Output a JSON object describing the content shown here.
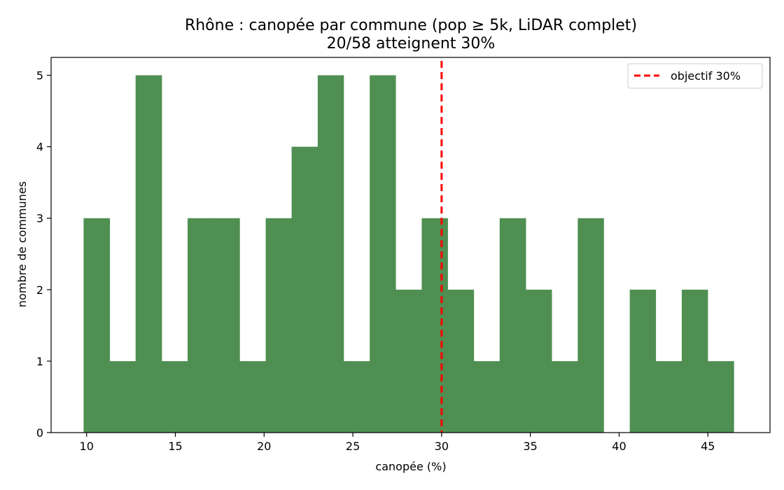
{
  "chart_data": {
    "type": "bar",
    "title": "Rhône : canopée par commune (pop ≥ 5k, LiDAR complet)",
    "subtitle": "20/58 atteignent 30%",
    "xlabel": "canopée (%)",
    "ylabel": "nombre de communes",
    "xlim": [
      8.0,
      48.5
    ],
    "ylim": [
      0,
      5.25
    ],
    "xticks": [
      10,
      15,
      20,
      25,
      30,
      35,
      40,
      45
    ],
    "yticks": [
      0,
      1,
      2,
      3,
      4,
      5
    ],
    "bin_edges": [
      9.83,
      11.3,
      12.76,
      14.23,
      15.69,
      17.16,
      18.62,
      20.09,
      21.55,
      23.02,
      24.48,
      25.95,
      27.41,
      28.88,
      30.34,
      31.81,
      33.27,
      34.74,
      36.2,
      37.67,
      39.13,
      40.6,
      42.06,
      43.53,
      44.99,
      46.46
    ],
    "values": [
      3,
      1,
      5,
      1,
      3,
      3,
      1,
      3,
      4,
      5,
      1,
      5,
      2,
      3,
      2,
      1,
      3,
      2,
      1,
      3,
      0,
      2,
      1,
      2,
      1
    ],
    "bar_color": "#4f8f52",
    "reference_line": {
      "x": 30,
      "label": "objectif 30%",
      "color": "#ff0000",
      "style": "dashed"
    },
    "legend_position": "top-right",
    "grid": false
  }
}
